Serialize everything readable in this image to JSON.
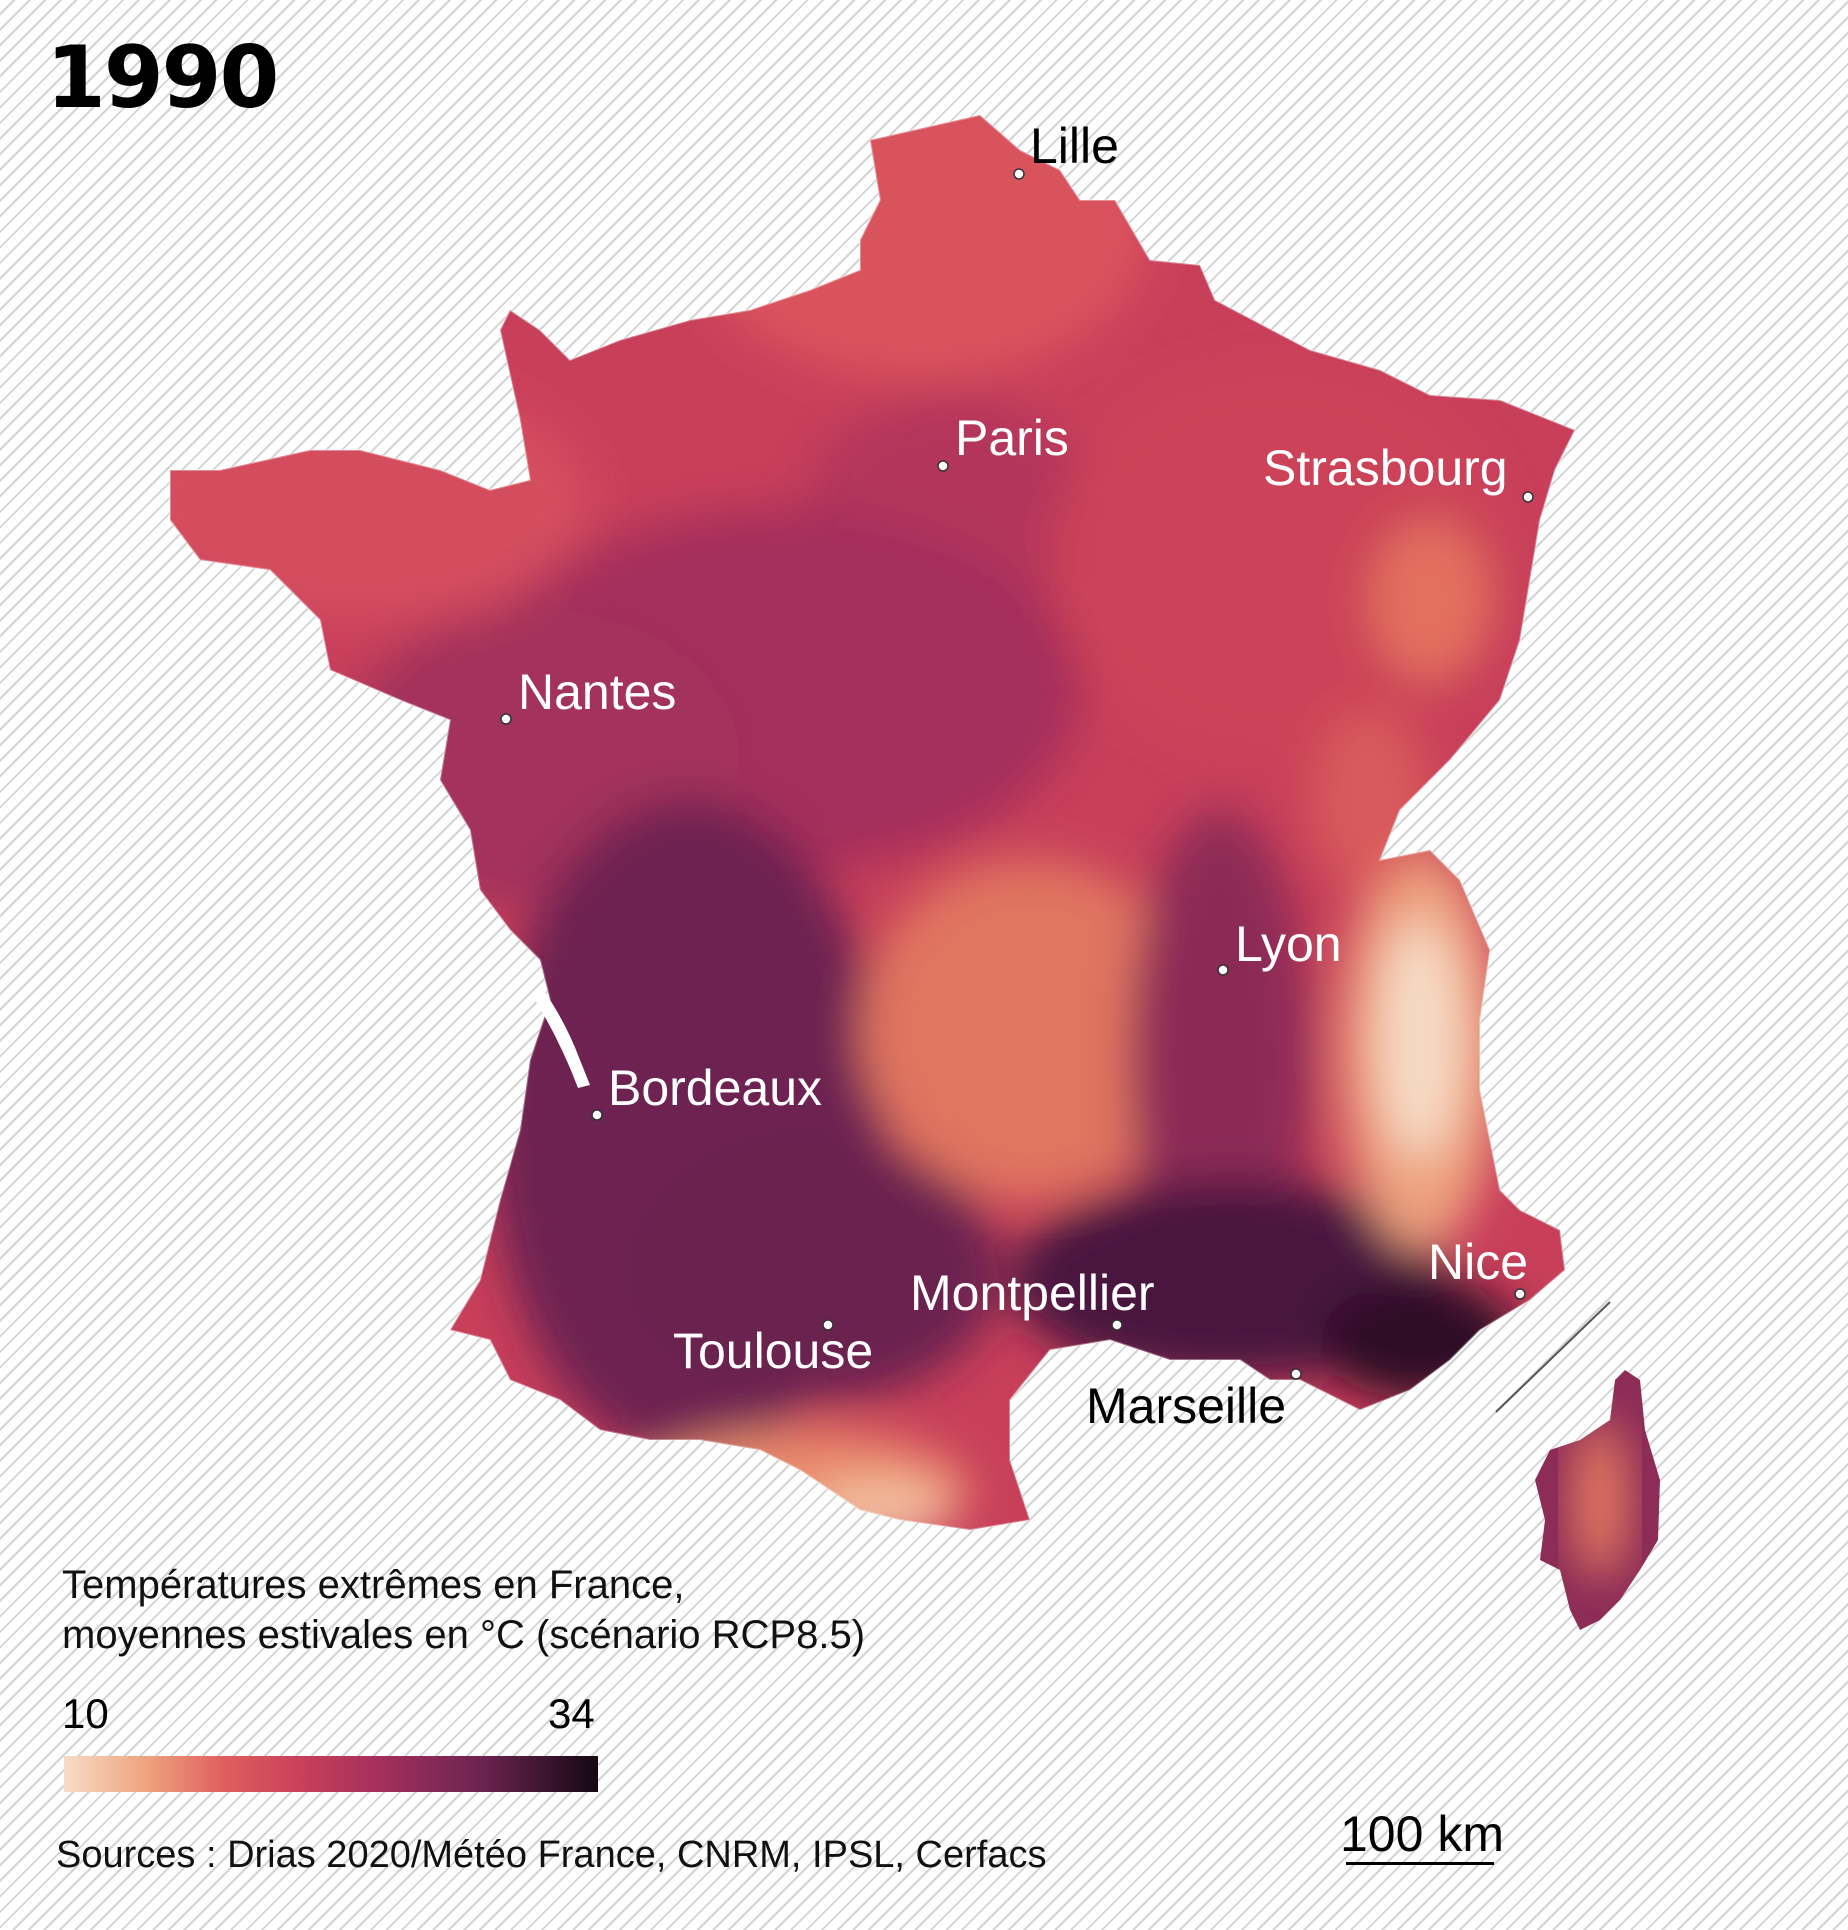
{
  "title": "1990",
  "colors": {
    "scale": [
      "#f7dcc8",
      "#eea57f",
      "#e05e5e",
      "#c83f5a",
      "#a12f5c",
      "#6d2451",
      "#150813"
    ],
    "hatch_background": "#d3d3d3",
    "city_label_on_dark": "#ffffff",
    "city_label_on_light": "#000000"
  },
  "cities": [
    {
      "name": "Lille"
    },
    {
      "name": "Paris"
    },
    {
      "name": "Strasbourg"
    },
    {
      "name": "Nantes"
    },
    {
      "name": "Lyon"
    },
    {
      "name": "Bordeaux"
    },
    {
      "name": "Nice"
    },
    {
      "name": "Montpellier"
    },
    {
      "name": "Toulouse"
    },
    {
      "name": "Marseille"
    }
  ],
  "legend": {
    "title_line1": "Températures extrêmes en France,",
    "title_line2": "moyennes estivales en °C (scénario RCP8.5)",
    "min": "10",
    "max": "34"
  },
  "sources": "Sources : Drias 2020/Météo France, CNRM, IPSL, Cerfacs",
  "scale_bar": "100 km"
}
